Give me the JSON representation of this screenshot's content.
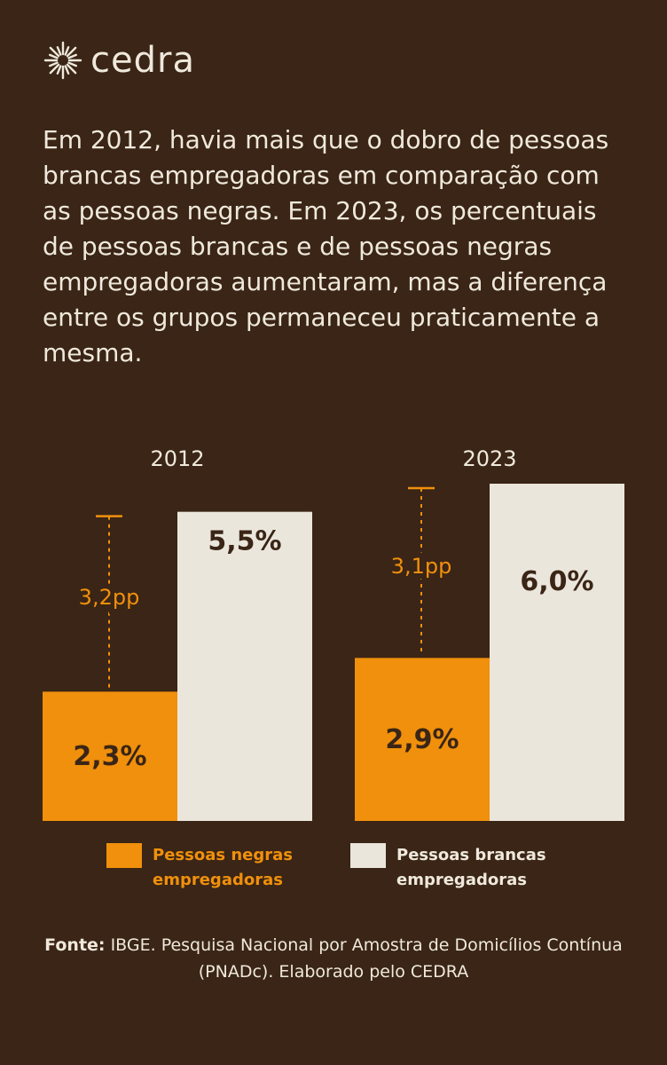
{
  "brand": {
    "name": "cedra",
    "icon": "sunburst-icon"
  },
  "headline": "Em 2012, havia mais que o dobro de pessoas brancas empregadoras em comparação com as pessoas negras. Em 2023, os percentuais de pessoas brancas e de pessoas negras empregadoras aumentaram, mas a diferença entre os grupos permaneceu praticamente a mesma.",
  "colors": {
    "background": "#3a2516",
    "negras": "#f0900c",
    "brancas": "#ebe6dc",
    "text_light": "#efe9dc",
    "text_dark": "#3a2516"
  },
  "chart_data": {
    "type": "bar",
    "categories": [
      "2012",
      "2023"
    ],
    "series": [
      {
        "name": "Pessoas negras empregadoras",
        "values": [
          2.3,
          2.9
        ],
        "labels": [
          "2,3%",
          "2,9%"
        ]
      },
      {
        "name": "Pessoas brancas empregadoras",
        "values": [
          5.5,
          6.0
        ],
        "labels": [
          "5,5%",
          "6,0%"
        ]
      }
    ],
    "gaps": [
      {
        "category": "2012",
        "value": 3.2,
        "label": "3,2pp"
      },
      {
        "category": "2023",
        "value": 3.1,
        "label": "3,1pp"
      }
    ],
    "ylim": [
      0,
      6.0
    ],
    "grid": false,
    "legend_position": "bottom"
  },
  "legend": [
    {
      "label": "Pessoas negras empregadoras"
    },
    {
      "label": "Pessoas brancas empregadoras"
    }
  ],
  "source": {
    "prefix": "Fonte:",
    "text": "IBGE. Pesquisa Nacional por Amostra de Domicílios Contínua (PNADc). Elaborado pelo CEDRA"
  }
}
